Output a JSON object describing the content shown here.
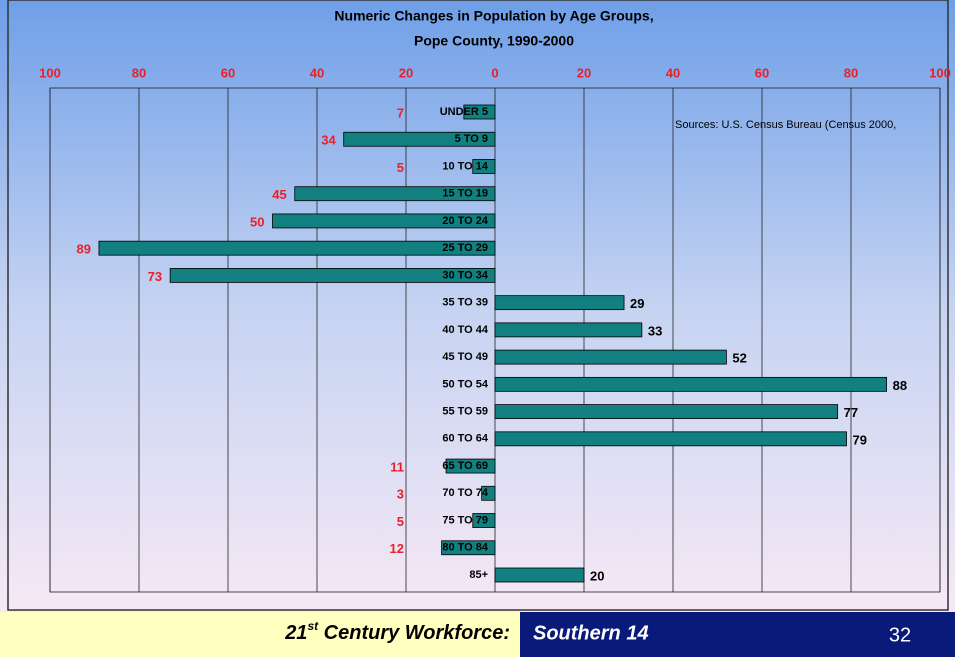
{
  "chart_data": {
    "type": "bar",
    "title": [
      "Numeric Changes in Population by Age Groups,",
      "Pope County, 1990-2000"
    ],
    "annotation": "Sources: U.S. Census Bureau (Census 2000,",
    "categories": [
      "UNDER 5",
      "5 TO 9",
      "10 TO 14",
      "15 TO 19",
      "20 TO 24",
      "25 TO 29",
      "30 TO 34",
      "35 TO 39",
      "40 TO 44",
      "45 TO 49",
      "50 TO 54",
      "55 TO 59",
      "60 TO 64",
      "65 TO 69",
      "70 TO 74",
      "75 TO 79",
      "80 TO 84",
      "85+"
    ],
    "values": [
      -7,
      -34,
      -5,
      -45,
      -50,
      -89,
      -73,
      29,
      33,
      52,
      88,
      77,
      79,
      -11,
      -3,
      -5,
      -12,
      20
    ],
    "value_labels": [
      "7",
      "34",
      "5",
      "45",
      "50",
      "89",
      "73",
      "29",
      "33",
      "52",
      "88",
      "77",
      "79",
      "11",
      "3",
      "5",
      "12",
      "20"
    ],
    "color": "#128080",
    "xlim": [
      -100,
      100
    ],
    "xticks": [
      {
        "value": -100,
        "label": "100"
      },
      {
        "value": -80,
        "label": "80"
      },
      {
        "value": -60,
        "label": "60"
      },
      {
        "value": -40,
        "label": "40"
      },
      {
        "value": -20,
        "label": "20"
      },
      0,
      20,
      40,
      60,
      80,
      100
    ],
    "grid": true
  },
  "footer": {
    "number": "21",
    "suffix": "st",
    "text": " Century Workforce:",
    "region": "Southern 14",
    "page": "32"
  }
}
